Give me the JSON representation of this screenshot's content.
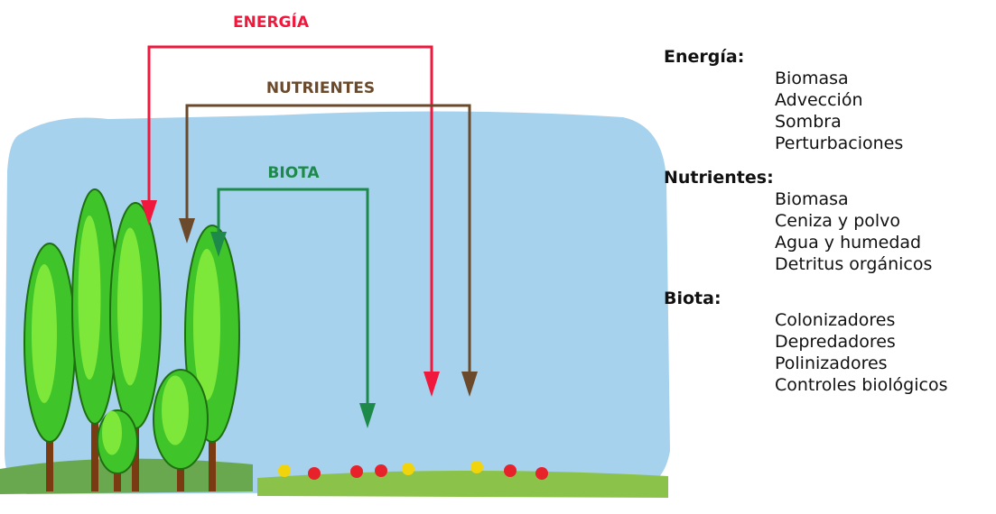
{
  "arrows": [
    {
      "label": "ENERGÍA"
    },
    {
      "label": "NUTRIENTES"
    },
    {
      "label": "BIOTA"
    }
  ],
  "legend": [
    {
      "heading": "Energía:",
      "items": [
        "Biomasa",
        "Advección",
        "Sombra",
        "Perturbaciones"
      ]
    },
    {
      "heading": "Nutrientes:",
      "items": [
        "Biomasa",
        "Ceniza y polvo",
        "Agua y humedad",
        "Detritus orgánicos"
      ]
    },
    {
      "heading": "Biota:",
      "items": [
        "Colonizadores",
        "Depredadores",
        "Polinizadores",
        "Controles biológicos"
      ]
    }
  ]
}
